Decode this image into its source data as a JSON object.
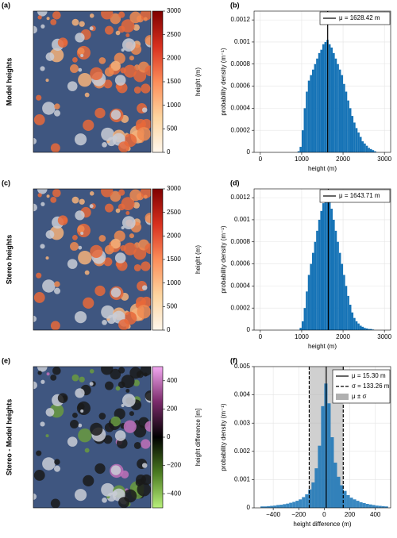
{
  "chart_data": [
    {
      "type": "image",
      "panel_label": "(a)",
      "row_label": "Model heights",
      "colorbar_label": "height (m)",
      "clim": [
        0,
        3000
      ],
      "cticks": [
        0,
        500,
        1000,
        1500,
        2000,
        2500,
        3000
      ],
      "colormap": [
        "#fff7ec",
        "#fdd49e",
        "#fc8d59",
        "#d7301f",
        "#7f0000"
      ],
      "overlay": "heights"
    },
    {
      "type": "histogram",
      "panel_label": "(b)",
      "xlabel": "height (m)",
      "ylabel": "probability density (m⁻¹)",
      "color": "#1673b6",
      "grid": true,
      "mean": 1628.42,
      "legend": [
        "μ = 1628.42 m"
      ],
      "xlim": [
        -150,
        3150
      ],
      "xticks": [
        0,
        1000,
        2000,
        3000
      ],
      "ylim": [
        0,
        0.00128
      ],
      "yticks": [
        0,
        0.0002,
        0.0004,
        0.0006,
        0.0008,
        0.001,
        0.0012
      ],
      "bins": [
        900,
        950,
        1000,
        1050,
        1100,
        1150,
        1200,
        1250,
        1300,
        1350,
        1400,
        1450,
        1500,
        1550,
        1600,
        1650,
        1700,
        1750,
        1800,
        1850,
        1900,
        1950,
        2000,
        2050,
        2100,
        2150,
        2200,
        2250,
        2300,
        2350,
        2400,
        2450,
        2500,
        2550,
        2600,
        2650,
        2700,
        2750,
        2800
      ],
      "values": [
        1e-05,
        5e-05,
        0.0002,
        0.0004,
        0.00055,
        0.00065,
        0.0007,
        0.00075,
        0.0008,
        0.00085,
        0.0009,
        0.00093,
        0.00098,
        0.001,
        0.00102,
        0.00098,
        0.00095,
        0.0009,
        0.00085,
        0.0008,
        0.00075,
        0.0007,
        0.00062,
        0.00055,
        0.00047,
        0.0004,
        0.00033,
        0.00027,
        0.00022,
        0.00018,
        0.00014,
        0.0001,
        8e-05,
        6e-05,
        4e-05,
        3e-05,
        2e-05,
        1e-05
      ]
    },
    {
      "type": "image",
      "panel_label": "(c)",
      "row_label": "Stereo heights",
      "colorbar_label": "height (m)",
      "clim": [
        0,
        3000
      ],
      "cticks": [
        0,
        500,
        1000,
        1500,
        2000,
        2500,
        3000
      ],
      "colormap": [
        "#fff7ec",
        "#fdd49e",
        "#fc8d59",
        "#d7301f",
        "#7f0000"
      ],
      "overlay": "heights"
    },
    {
      "type": "histogram",
      "panel_label": "(d)",
      "xlabel": "height (m)",
      "ylabel": "probability density (m⁻¹)",
      "color": "#1673b6",
      "grid": true,
      "mean": 1643.71,
      "legend": [
        "μ = 1643.71 m"
      ],
      "xlim": [
        -150,
        3150
      ],
      "xticks": [
        0,
        1000,
        2000,
        3000
      ],
      "ylim": [
        0,
        0.00128
      ],
      "yticks": [
        0,
        0.0002,
        0.0004,
        0.0006,
        0.0008,
        0.001,
        0.0012
      ],
      "bins": [
        900,
        950,
        1000,
        1050,
        1100,
        1150,
        1200,
        1250,
        1300,
        1350,
        1400,
        1450,
        1500,
        1550,
        1600,
        1650,
        1700,
        1750,
        1800,
        1850,
        1900,
        1950,
        2000,
        2050,
        2100,
        2150,
        2200,
        2250,
        2300,
        2350,
        2400,
        2450,
        2500,
        2550,
        2600,
        2650,
        2700,
        2750,
        2800
      ],
      "values": [
        0,
        2e-05,
        8e-05,
        0.0002,
        0.00035,
        0.0005,
        0.0006,
        0.0007,
        0.0008,
        0.0009,
        0.001,
        0.00108,
        0.00115,
        0.0012,
        0.00122,
        0.00118,
        0.0011,
        0.001,
        0.0009,
        0.0008,
        0.0007,
        0.0006,
        0.0005,
        0.0004,
        0.00031,
        0.00023,
        0.00016,
        0.00011,
        8e-05,
        6e-05,
        4e-05,
        3e-05,
        2e-05,
        1.5e-05,
        1e-05,
        1e-05,
        5e-06,
        0
      ]
    },
    {
      "type": "image",
      "panel_label": "(e)",
      "row_label": "Stereo - Model heights",
      "colorbar_label": "height difference [m]",
      "clim": [
        -500,
        500
      ],
      "cticks": [
        {
          "value": -400,
          "label": "−400"
        },
        {
          "value": -200,
          "label": "−200"
        },
        0,
        200,
        400
      ],
      "colormap": [
        "#b8f07a",
        "#4a7a20",
        "#000000",
        "#7a2a6a",
        "#f2a8f0"
      ],
      "overlay": "difference"
    },
    {
      "type": "histogram",
      "panel_label": "(f)",
      "xlabel": "height difference (m)",
      "ylabel": "probability density (m⁻¹)",
      "color": "#1673b6",
      "grid": true,
      "mean": 15.3,
      "std": 133.26,
      "legend": [
        "μ = 15.30 m",
        "σ = 133.26 m",
        "μ ± σ"
      ],
      "xlim": [
        -550,
        520
      ],
      "xticks": [
        {
          "value": -400,
          "label": "−400"
        },
        {
          "value": -200,
          "label": "−200"
        },
        0,
        200,
        400
      ],
      "ylim": [
        0,
        0.005
      ],
      "yticks": [
        0,
        0.001,
        0.002,
        0.003,
        0.004,
        0.005
      ],
      "bins": [
        -500,
        -475,
        -450,
        -425,
        -400,
        -375,
        -350,
        -325,
        -300,
        -275,
        -250,
        -225,
        -200,
        -175,
        -150,
        -125,
        -100,
        -75,
        -50,
        -25,
        0,
        25,
        50,
        75,
        100,
        125,
        150,
        175,
        200,
        225,
        250,
        275,
        300,
        325,
        350,
        375,
        400,
        425,
        450,
        475,
        500
      ],
      "values": [
        5e-05,
        5e-05,
        6e-05,
        7e-05,
        8e-05,
        0.0001,
        0.00011,
        0.00013,
        0.00015,
        0.00018,
        0.00021,
        0.00025,
        0.0003,
        0.00038,
        0.00048,
        0.00065,
        0.0009,
        0.0014,
        0.0022,
        0.0036,
        0.0044,
        0.0037,
        0.0025,
        0.0016,
        0.0011,
        0.0008,
        0.0006,
        0.00045,
        0.00036,
        0.0003,
        0.00025,
        0.0002,
        0.00017,
        0.00014,
        0.00012,
        0.0001,
        8e-05,
        7e-05,
        6e-05,
        5e-05
      ]
    }
  ]
}
